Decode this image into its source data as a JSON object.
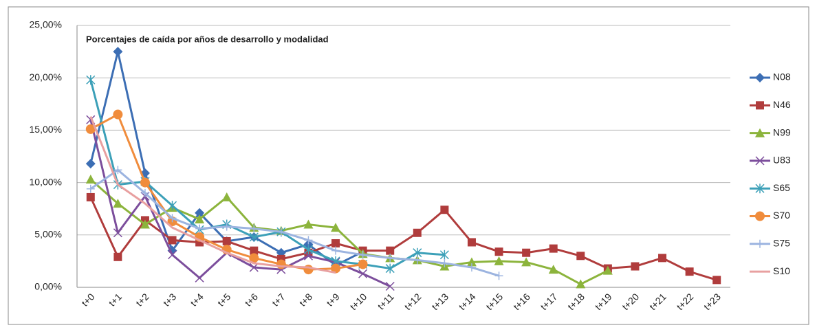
{
  "chart_data": {
    "type": "line",
    "title": "Porcentajes de caída por años de desarrollo y modalidad",
    "categories": [
      "t+0",
      "t+1",
      "t+2",
      "t+3",
      "t+4",
      "t+5",
      "t+6",
      "t+7",
      "t+8",
      "t+9",
      "t+10",
      "t+11",
      "t+12",
      "t+13",
      "t+14",
      "t+15",
      "t+16",
      "t+17",
      "t+18",
      "t+19",
      "t+20",
      "t+21",
      "t+22",
      "t+23"
    ],
    "ylim": [
      0,
      25
    ],
    "yticks": [
      {
        "value": 0,
        "label": "0,00%"
      },
      {
        "value": 5,
        "label": "5,00%"
      },
      {
        "value": 10,
        "label": "10,00%"
      },
      {
        "value": 15,
        "label": "15,00%"
      },
      {
        "value": 20,
        "label": "20,00%"
      },
      {
        "value": 25,
        "label": "25,00%"
      }
    ],
    "grid": true,
    "legend": "right",
    "series": [
      {
        "name": "N08",
        "color": "#3c6eb4",
        "marker": "diamond",
        "values": [
          11.8,
          22.5,
          10.9,
          3.5,
          7.1,
          4.4,
          4.8,
          3.3,
          4.1,
          2.1,
          3.4,
          null,
          null,
          null,
          null,
          null,
          null,
          null,
          null,
          null,
          null,
          null,
          null,
          null
        ]
      },
      {
        "name": "N46",
        "color": "#b03c3c",
        "marker": "square",
        "values": [
          8.6,
          2.9,
          6.4,
          4.5,
          4.3,
          4.4,
          3.5,
          2.7,
          3.3,
          4.2,
          3.5,
          3.5,
          5.2,
          7.4,
          4.3,
          3.4,
          3.3,
          3.7,
          3.0,
          1.8,
          2.0,
          2.8,
          1.5,
          0.7
        ]
      },
      {
        "name": "N99",
        "color": "#8cb43c",
        "marker": "triangle",
        "values": [
          10.3,
          8.0,
          6.0,
          7.6,
          6.5,
          8.6,
          5.7,
          5.4,
          6.0,
          5.7,
          3.2,
          2.8,
          2.6,
          2.0,
          2.4,
          2.5,
          2.4,
          1.7,
          0.3,
          1.6,
          null,
          null,
          null,
          null
        ]
      },
      {
        "name": "U83",
        "color": "#7c4e9c",
        "marker": "x",
        "values": [
          16.0,
          5.2,
          8.7,
          3.1,
          0.9,
          3.3,
          1.9,
          1.7,
          3.0,
          2.4,
          1.3,
          0.1,
          null,
          null,
          null,
          null,
          null,
          null,
          null,
          null,
          null,
          null,
          null,
          null
        ]
      },
      {
        "name": "S65",
        "color": "#3ca0b8",
        "marker": "star",
        "values": [
          19.8,
          9.8,
          10.1,
          7.8,
          5.5,
          6.0,
          4.8,
          5.3,
          3.6,
          2.5,
          2.2,
          1.8,
          3.3,
          3.1,
          null,
          null,
          null,
          null,
          null,
          null,
          null,
          null,
          null,
          null
        ]
      },
      {
        "name": "S70",
        "color": "#f08c3c",
        "marker": "circle",
        "values": [
          15.1,
          16.5,
          10.0,
          6.3,
          4.8,
          3.6,
          2.8,
          2.2,
          1.7,
          1.8,
          2.2,
          null,
          null,
          null,
          null,
          null,
          null,
          null,
          null,
          null,
          null,
          null,
          null,
          null
        ]
      },
      {
        "name": "S75",
        "color": "#9cb4e0",
        "marker": "plus",
        "values": [
          9.4,
          11.2,
          9.0,
          6.6,
          5.6,
          5.8,
          5.6,
          5.3,
          4.5,
          3.5,
          3.1,
          2.8,
          2.6,
          2.3,
          1.9,
          1.1,
          null,
          null,
          null,
          null,
          null,
          null,
          null,
          null
        ]
      },
      {
        "name": "S10",
        "color": "#e8a0a0",
        "marker": "none",
        "values": [
          16.3,
          9.8,
          8.0,
          5.7,
          4.5,
          3.3,
          2.3,
          2.0,
          1.9,
          1.4,
          null,
          null,
          null,
          null,
          null,
          null,
          null,
          null,
          null,
          null,
          null,
          null,
          null,
          null
        ]
      }
    ]
  }
}
